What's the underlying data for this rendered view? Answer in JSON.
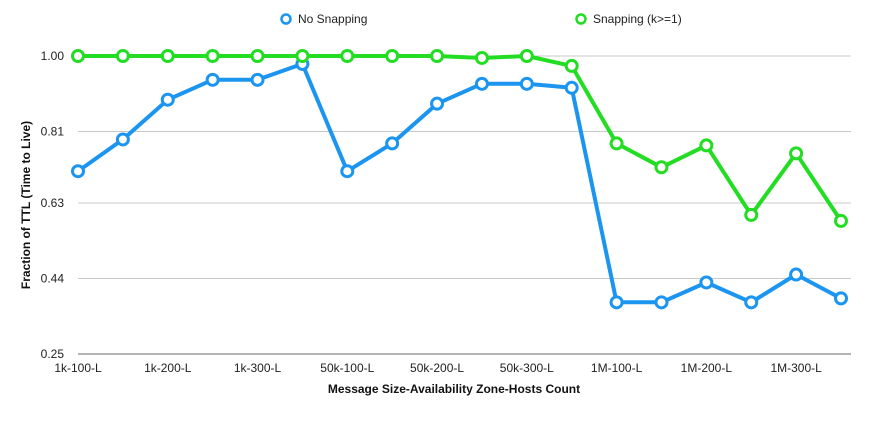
{
  "chart_data": {
    "type": "line",
    "xlabel": "Message Size-Availability Zone-Hosts Count",
    "ylabel": "Fraction of TTL (Time to Live)",
    "ylim": [
      0.25,
      1.0
    ],
    "yticks": [
      "0.25",
      "0.44",
      "0.63",
      "0.81",
      "1.00"
    ],
    "xtick_labels": [
      "1k-100-L",
      "1k-200-L",
      "1k-300-L",
      "50k-100-L",
      "50k-200-L",
      "50k-300-L",
      "1M-100-L",
      "1M-200-L",
      "1M-300-L"
    ],
    "grid": "horizontal",
    "legend_position": "top",
    "series": [
      {
        "name": "No Snapping",
        "color": "#1b95f0",
        "values": [
          0.71,
          0.79,
          0.89,
          0.94,
          0.94,
          0.98,
          0.71,
          0.78,
          0.88,
          0.93,
          0.93,
          0.92,
          0.38,
          0.38,
          0.43,
          0.38,
          0.45,
          0.39
        ]
      },
      {
        "name": "Snapping (k>=1)",
        "color": "#22dd22",
        "values": [
          1.0,
          1.0,
          1.0,
          1.0,
          1.0,
          1.0,
          1.0,
          1.0,
          1.0,
          0.995,
          1.0,
          0.975,
          0.78,
          0.72,
          0.775,
          0.6,
          0.755,
          0.585
        ]
      }
    ]
  }
}
